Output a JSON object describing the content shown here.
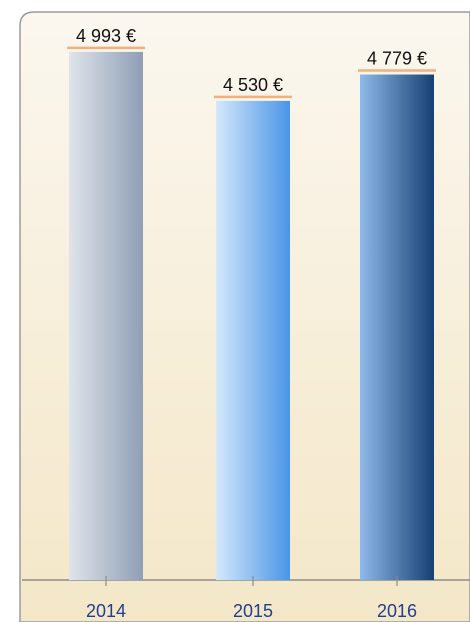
{
  "chart_data": {
    "type": "bar",
    "categories": [
      "2014",
      "2015",
      "2016"
    ],
    "values": [
      4993,
      4530,
      4779
    ],
    "value_labels": [
      "4 993 €",
      "4 530 €",
      "4 779 €"
    ],
    "unit": "€",
    "ylim": [
      0,
      5200
    ],
    "grid": false,
    "legend": "none",
    "colors": {
      "panel_top": "#fbf7ef",
      "panel_bottom": "#f4e7c8",
      "panel_border": "#9c9c9c",
      "axis": "#8c8c8c",
      "tick_label": "#1f3f8f",
      "value_underline": "#f3b07a",
      "bar_2014": [
        "#dfe4ea",
        "#8f9fb5"
      ],
      "bar_2015": [
        "#d4e8fb",
        "#4a95e6"
      ],
      "bar_2016": [
        "#8fb9e8",
        "#163f74"
      ]
    }
  }
}
